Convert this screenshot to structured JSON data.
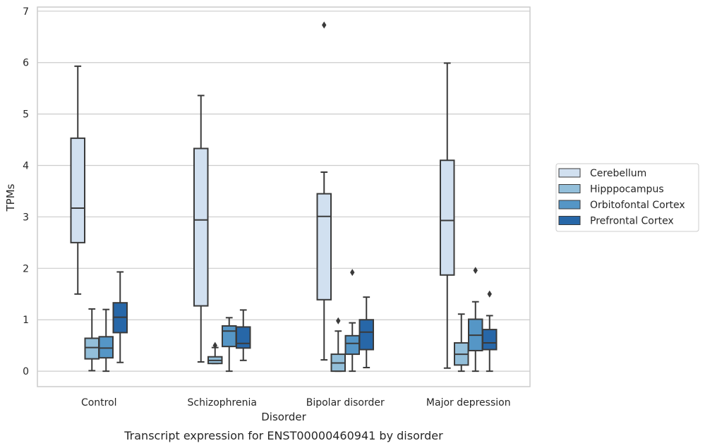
{
  "chart_data": {
    "type": "box",
    "title": "",
    "caption": "Transcript expression for ENST00000460941 by disorder",
    "xlabel": "Disorder",
    "ylabel": "TPMs",
    "ylim": [
      -0.3,
      7.08
    ],
    "yticks": [
      0,
      1,
      2,
      3,
      4,
      5,
      6,
      7
    ],
    "grid": "horizontal",
    "legend_position": "right",
    "categories": [
      "Control",
      "Schizophrenia",
      "Bipolar disorder",
      "Major depression"
    ],
    "series": [
      {
        "name": "Cerebellum",
        "color": "#d1e0f0",
        "boxes": [
          {
            "whislo": 1.5,
            "q1": 2.5,
            "med": 3.17,
            "q3": 4.53,
            "whishi": 5.93,
            "fliers": []
          },
          {
            "whislo": 0.18,
            "q1": 1.27,
            "med": 2.94,
            "q3": 4.33,
            "whishi": 5.36,
            "fliers": []
          },
          {
            "whislo": 0.22,
            "q1": 1.39,
            "med": 3.01,
            "q3": 3.45,
            "whishi": 3.87,
            "fliers": [
              6.73
            ]
          },
          {
            "whislo": 0.06,
            "q1": 1.87,
            "med": 2.93,
            "q3": 4.1,
            "whishi": 5.99,
            "fliers": []
          }
        ]
      },
      {
        "name": "Hipppocampus",
        "color": "#93bfda",
        "boxes": [
          {
            "whislo": 0.01,
            "q1": 0.24,
            "med": 0.46,
            "q3": 0.64,
            "whishi": 1.21,
            "fliers": []
          },
          {
            "whislo": 0.15,
            "q1": 0.15,
            "med": 0.21,
            "q3": 0.28,
            "whishi": 0.46,
            "fliers": [
              0.5
            ]
          },
          {
            "whislo": 0.0,
            "q1": 0.0,
            "med": 0.16,
            "q3": 0.33,
            "whishi": 0.78,
            "fliers": [
              0.98
            ]
          },
          {
            "whislo": 0.0,
            "q1": 0.12,
            "med": 0.33,
            "q3": 0.55,
            "whishi": 1.11,
            "fliers": []
          }
        ]
      },
      {
        "name": "Orbitofontal Cortex",
        "color": "#5596c6",
        "boxes": [
          {
            "whislo": 0.0,
            "q1": 0.26,
            "med": 0.45,
            "q3": 0.67,
            "whishi": 1.2,
            "fliers": []
          },
          {
            "whislo": 0.0,
            "q1": 0.48,
            "med": 0.78,
            "q3": 0.88,
            "whishi": 1.04,
            "fliers": []
          },
          {
            "whislo": 0.0,
            "q1": 0.33,
            "med": 0.54,
            "q3": 0.69,
            "whishi": 0.94,
            "fliers": [
              1.92
            ]
          },
          {
            "whislo": 0.0,
            "q1": 0.4,
            "med": 0.7,
            "q3": 1.01,
            "whishi": 1.35,
            "fliers": [
              1.96
            ]
          }
        ]
      },
      {
        "name": "Prefrontal Cortex",
        "color": "#2767a8",
        "boxes": [
          {
            "whislo": 0.17,
            "q1": 0.75,
            "med": 1.05,
            "q3": 1.33,
            "whishi": 1.93,
            "fliers": []
          },
          {
            "whislo": 0.21,
            "q1": 0.45,
            "med": 0.54,
            "q3": 0.86,
            "whishi": 1.19,
            "fliers": []
          },
          {
            "whislo": 0.07,
            "q1": 0.42,
            "med": 0.76,
            "q3": 1.0,
            "whishi": 1.44,
            "fliers": []
          },
          {
            "whislo": 0.0,
            "q1": 0.42,
            "med": 0.55,
            "q3": 0.81,
            "whishi": 1.08,
            "fliers": [
              1.5
            ]
          }
        ]
      }
    ]
  }
}
